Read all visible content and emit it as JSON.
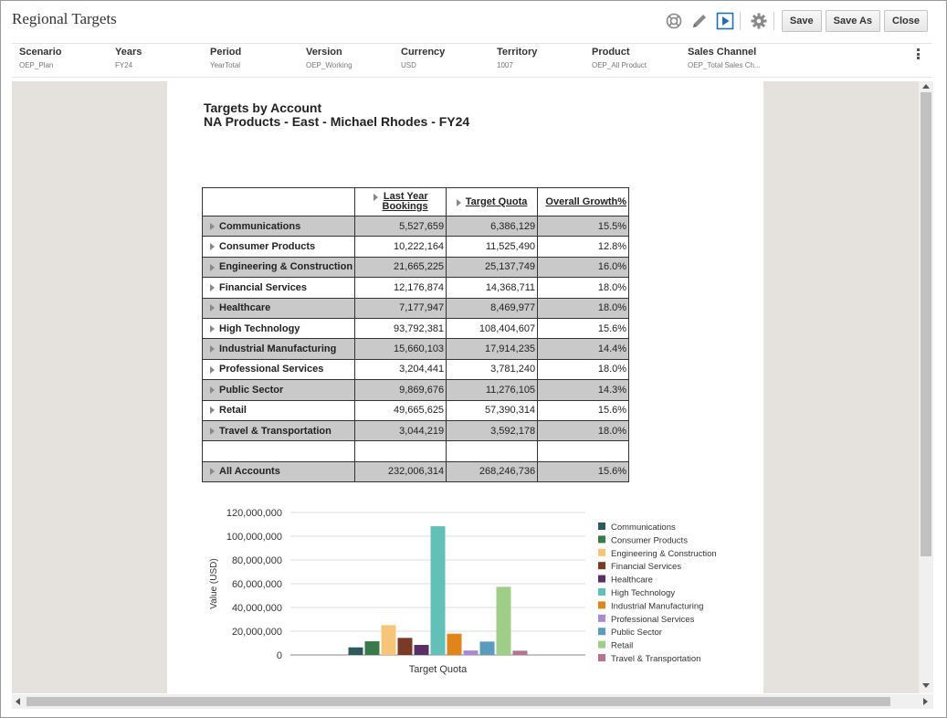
{
  "window": {
    "title": "Regional Targets"
  },
  "toolbar": {
    "save_label": "Save",
    "save_as_label": "Save As",
    "close_label": "Close"
  },
  "pov": [
    {
      "label": "Scenario",
      "value": "OEP_Plan"
    },
    {
      "label": "Years",
      "value": "FY24"
    },
    {
      "label": "Period",
      "value": "YearTotal"
    },
    {
      "label": "Version",
      "value": "OEP_Working"
    },
    {
      "label": "Currency",
      "value": "USD"
    },
    {
      "label": "Territory",
      "value": "1007"
    },
    {
      "label": "Product",
      "value": "OEP_All Product"
    },
    {
      "label": "Sales Channel",
      "value": "OEP_Total Sales Ch..."
    }
  ],
  "report": {
    "title": "Targets by Account",
    "subtitle": "NA Products - East - Michael Rhodes - FY24",
    "columns": [
      "Last Year Bookings",
      "Target Quota",
      "Overall Growth%"
    ],
    "col1_line1": "Last Year",
    "col1_line2": "Bookings",
    "rows": [
      {
        "name": "Communications",
        "bookings": "5,527,659",
        "quota": "6,386,129",
        "growth": "15.5%"
      },
      {
        "name": "Consumer Products",
        "bookings": "10,222,164",
        "quota": "11,525,490",
        "growth": "12.8%"
      },
      {
        "name": "Engineering & Construction",
        "bookings": "21,665,225",
        "quota": "25,137,749",
        "growth": "16.0%"
      },
      {
        "name": "Financial Services",
        "bookings": "12,176,874",
        "quota": "14,368,711",
        "growth": "18.0%"
      },
      {
        "name": "Healthcare",
        "bookings": "7,177,947",
        "quota": "8,469,977",
        "growth": "18.0%"
      },
      {
        "name": "High Technology",
        "bookings": "93,792,381",
        "quota": "108,404,607",
        "growth": "15.6%"
      },
      {
        "name": "Industrial Manufacturing",
        "bookings": "15,660,103",
        "quota": "17,914,235",
        "growth": "14.4%"
      },
      {
        "name": "Professional Services",
        "bookings": "3,204,441",
        "quota": "3,781,240",
        "growth": "18.0%"
      },
      {
        "name": "Public Sector",
        "bookings": "9,869,676",
        "quota": "11,276,105",
        "growth": "14.3%"
      },
      {
        "name": "Retail",
        "bookings": "49,665,625",
        "quota": "57,390,314",
        "growth": "15.6%"
      },
      {
        "name": "Travel & Transportation",
        "bookings": "3,044,219",
        "quota": "3,592,178",
        "growth": "18.0%"
      }
    ],
    "total": {
      "name": "All Accounts",
      "bookings": "232,006,314",
      "quota": "268,246,736",
      "growth": "15.6%"
    }
  },
  "chart_data": {
    "type": "bar",
    "categories": [
      "Target Quota"
    ],
    "xlabel": "Target Quota",
    "ylabel": "Value (USD)",
    "ylim": [
      0,
      120000000
    ],
    "yticks": [
      "0",
      "20,000,000",
      "40,000,000",
      "60,000,000",
      "80,000,000",
      "100,000,000",
      "120,000,000"
    ],
    "grid": true,
    "legend_position": "right",
    "series": [
      {
        "name": "Communications",
        "values": [
          6386129
        ],
        "color": "#2e5a5e"
      },
      {
        "name": "Consumer Products",
        "values": [
          11525490
        ],
        "color": "#3a7a4a"
      },
      {
        "name": "Engineering & Construction",
        "values": [
          25137749
        ],
        "color": "#f7c57a"
      },
      {
        "name": "Financial Services",
        "values": [
          14368711
        ],
        "color": "#7a3a26"
      },
      {
        "name": "Healthcare",
        "values": [
          8469977
        ],
        "color": "#5a2e66"
      },
      {
        "name": "High Technology",
        "values": [
          108404607
        ],
        "color": "#62c0b8"
      },
      {
        "name": "Industrial Manufacturing",
        "values": [
          17914235
        ],
        "color": "#e0841c"
      },
      {
        "name": "Professional Services",
        "values": [
          3781240
        ],
        "color": "#a98ad0"
      },
      {
        "name": "Public Sector",
        "values": [
          11276105
        ],
        "color": "#5b9bbd"
      },
      {
        "name": "Retail",
        "values": [
          57390314
        ],
        "color": "#9fce88"
      },
      {
        "name": "Travel & Transportation",
        "values": [
          3592178
        ],
        "color": "#b57590"
      }
    ]
  }
}
